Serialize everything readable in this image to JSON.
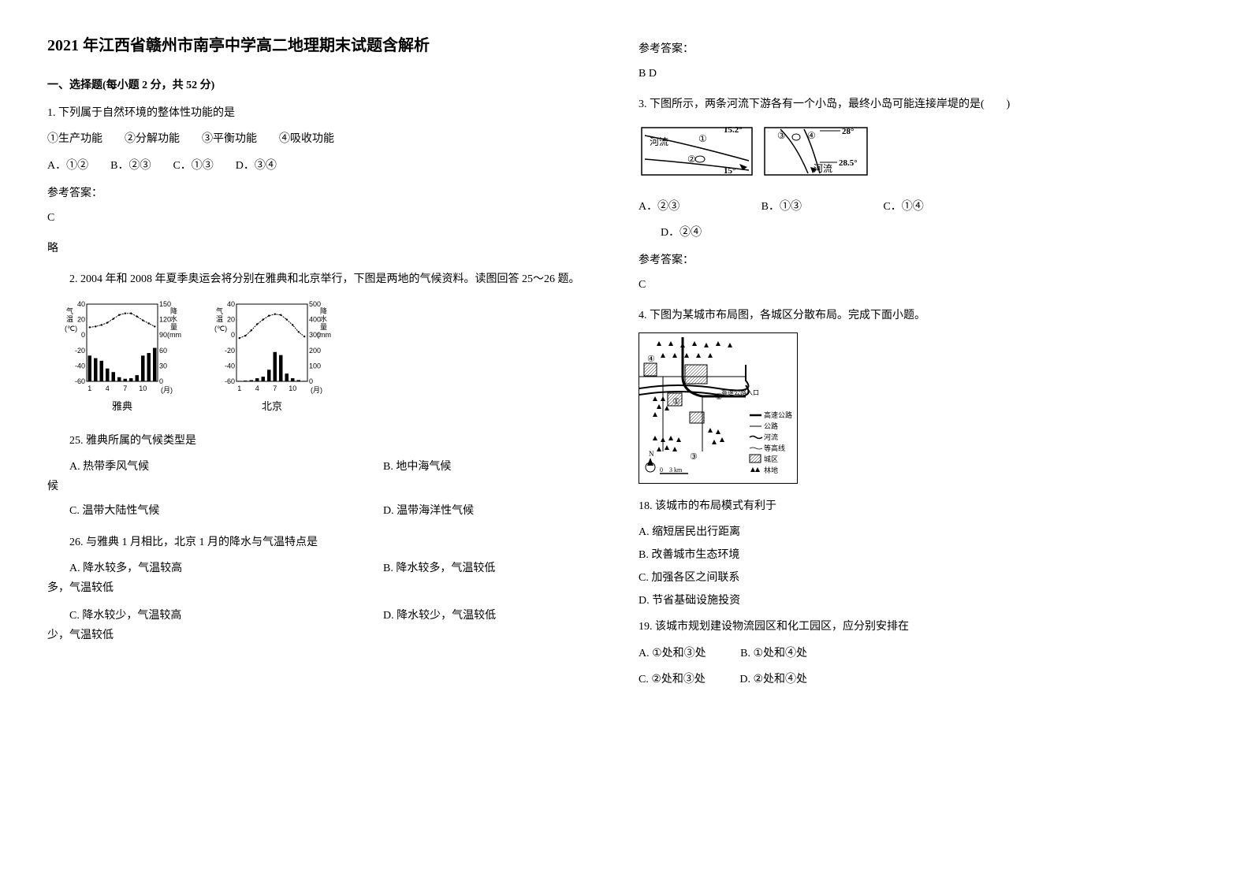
{
  "title": "2021 年江西省赣州市南亭中学高二地理期末试题含解析",
  "section1_header": "一、选择题(每小题 2 分，共 52 分)",
  "q1": {
    "text": "1. 下列属于自然环境的整体性功能的是",
    "line2": "①生产功能　　②分解功能　　③平衡功能　　④吸收功能",
    "opts": "A．①②　　B．②③　　C．①③　　D．③④",
    "ans_label": "参考答案：",
    "ans": "C",
    "note": "略"
  },
  "q2": {
    "intro": "2. 2004 年和 2008 年夏季奥运会将分别在雅典和北京举行，下图是两地的气候资料。读图回答 25～26 题。",
    "chart_athens": {
      "name": "雅典",
      "y_temp_label": "气温(℃)",
      "y_prec_label": "降水量(mm)",
      "x_label": "(月)",
      "temp_ticks": [
        -60,
        -40,
        -20,
        0,
        20,
        40
      ],
      "prec_ticks": [
        0,
        30,
        60,
        90,
        120,
        150
      ],
      "x_ticks": [
        1,
        4,
        7,
        10
      ],
      "temp_curve_color": "#000000",
      "bar_color": "#000000",
      "bg": "#ffffff",
      "temp_values": [
        10,
        11,
        13,
        16,
        21,
        26,
        28,
        28,
        24,
        19,
        15,
        11
      ],
      "prec_values": [
        50,
        45,
        40,
        25,
        18,
        8,
        5,
        6,
        12,
        50,
        55,
        65
      ]
    },
    "chart_beijing": {
      "name": "北京",
      "y_temp_label": "气温(℃)",
      "y_prec_label": "降水量(mm)",
      "x_label": "(月)",
      "temp_ticks": [
        -60,
        -40,
        -20,
        0,
        20,
        40
      ],
      "prec_ticks": [
        0,
        100,
        200,
        300,
        400,
        500
      ],
      "x_ticks": [
        1,
        4,
        7,
        10
      ],
      "temp_curve_color": "#000000",
      "bar_color": "#000000",
      "bg": "#ffffff",
      "temp_values": [
        -4,
        -1,
        6,
        14,
        20,
        25,
        27,
        26,
        20,
        13,
        4,
        -2
      ],
      "prec_values": [
        3,
        5,
        8,
        20,
        30,
        75,
        190,
        170,
        50,
        20,
        8,
        3
      ]
    },
    "q25": {
      "text": "25. 雅典所属的气候类型是",
      "a": "A. 热带季风气候",
      "b": "B. 地中海气候",
      "c": "C. 温带大陆性气候",
      "d": "D. 温带海洋性气候"
    },
    "q26": {
      "text": "26. 与雅典 1 月相比，北京 1 月的降水与气温特点是",
      "a": "A. 降水较多，气温较高",
      "b": "B. 降水较多，气温较低",
      "c": "C. 降水较少，气温较高",
      "d": "D. 降水较少，气温较低"
    },
    "ans_label_r": "参考答案：",
    "ans_r": "B D"
  },
  "q3": {
    "text": "3. 下图所示，两条河流下游各有一个小岛，最终小岛可能连接岸堤的是(　　)",
    "figure": {
      "river_label": "河流",
      "labels": [
        "①",
        "②",
        "③",
        "④"
      ],
      "lat_left_top": "15.2°",
      "lat_left_bot": "15°",
      "lat_right_top": "28°",
      "lat_right_bot": "28.5°",
      "island_label": "〇"
    },
    "opts_a": "A．②③",
    "opts_b": "B．①③",
    "opts_c": "C．①④",
    "opts_d": "D．②④",
    "ans_label": "参考答案：",
    "ans": "C"
  },
  "q4": {
    "text": "4. 下图为某城市布局图，各城区分散布局。完成下面小题。",
    "figure": {
      "legend_highway": "高速公路",
      "legend_road": "公路",
      "legend_river": "河流",
      "legend_contour": "等高线",
      "legend_urban": "城区",
      "legend_forest": "林地",
      "scale": "0　3 km",
      "north": "N",
      "entrance_label": "高速公路入口",
      "zones": [
        "①",
        "②",
        "③",
        "④"
      ]
    },
    "q18": {
      "text": "18.  该城市的布局模式有利于",
      "a": "A.  缩短居民出行距离",
      "b": "B.  改善城市生态环境",
      "c": "C.  加强各区之间联系",
      "d": "D.  节省基础设施投资"
    },
    "q19": {
      "text": "19.  该城市规划建设物流园区和化工园区，应分别安排在",
      "a": "A.  ①处和③处",
      "b": "B.  ①处和④处",
      "c": "C.  ②处和③处",
      "d": "D.  ②处和④处"
    }
  }
}
